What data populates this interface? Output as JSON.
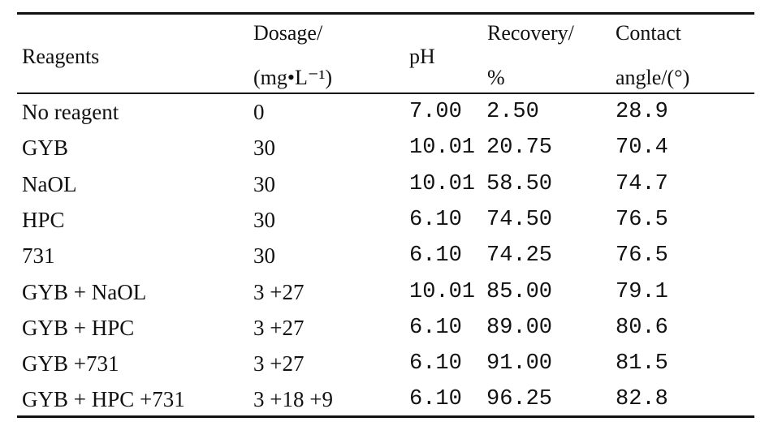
{
  "table": {
    "headers": {
      "reagents": "Reagents",
      "dosage_line1": "Dosage/",
      "dosage_line2": "(mg•L⁻¹)",
      "ph": "pH",
      "recovery_line1": "Recovery/",
      "recovery_line2": "%",
      "contact_line1": "Contact",
      "contact_line2": "angle/(°)"
    },
    "rows": [
      {
        "reagent": "No reagent",
        "dosage": "0",
        "ph": "7.00",
        "recovery": "2.50",
        "angle": "28.9"
      },
      {
        "reagent": "GYB",
        "dosage": "30",
        "ph": "10.01",
        "recovery": "20.75",
        "angle": "70.4"
      },
      {
        "reagent": "NaOL",
        "dosage": "30",
        "ph": "10.01",
        "recovery": "58.50",
        "angle": "74.7"
      },
      {
        "reagent": "HPC",
        "dosage": "30",
        "ph": "6.10",
        "recovery": "74.50",
        "angle": "76.5"
      },
      {
        "reagent": "731",
        "dosage": "30",
        "ph": "6.10",
        "recovery": "74.25",
        "angle": "76.5"
      },
      {
        "reagent": "GYB + NaOL",
        "dosage": "3 +27",
        "ph": "10.01",
        "recovery": "85.00",
        "angle": "79.1"
      },
      {
        "reagent": "GYB + HPC",
        "dosage": "3 +27",
        "ph": "6.10",
        "recovery": "89.00",
        "angle": "80.6"
      },
      {
        "reagent": "GYB +731",
        "dosage": "3 +27",
        "ph": "6.10",
        "recovery": "91.00",
        "angle": "81.5"
      },
      {
        "reagent": "GYB + HPC +731",
        "dosage": "3 +18 +9",
        "ph": "6.10",
        "recovery": "96.25",
        "angle": "82.8"
      }
    ]
  }
}
